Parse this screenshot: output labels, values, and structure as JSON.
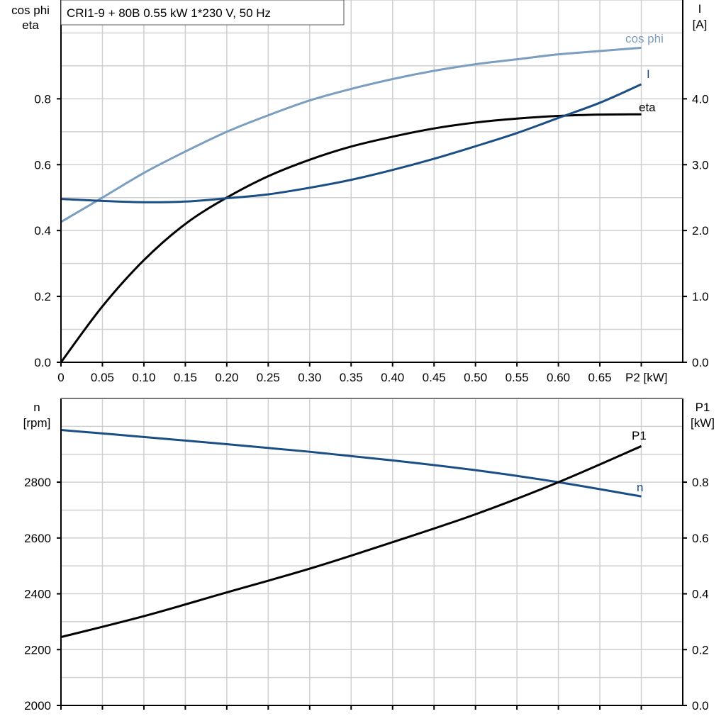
{
  "title": "CRI1-9 + 80B   0.55 kW   1*230 V, 50 Hz",
  "colors": {
    "cos_phi": "#7b9dbf",
    "I": "#1a4e85",
    "eta": "#000000",
    "n": "#1a4e85",
    "P1": "#000000",
    "grid": "#d0d0d0"
  },
  "chart_data": [
    {
      "type": "line",
      "x_label": "P2 [kW]",
      "x_ticks": [
        "0",
        "0.05",
        "0.10",
        "0.15",
        "0.20",
        "0.25",
        "0.30",
        "0.35",
        "0.40",
        "0.45",
        "0.50",
        "0.55",
        "0.60",
        "0.65"
      ],
      "xlim": [
        0,
        0.75
      ],
      "left_axis_label": [
        "cos phi",
        "eta"
      ],
      "left_ticks": [
        "0.0",
        "0.2",
        "0.4",
        "0.6",
        "0.8"
      ],
      "ylim_left": [
        0,
        1.1
      ],
      "right_axis_label": [
        "I",
        "[A]"
      ],
      "right_ticks": [
        "0.0",
        "1.0",
        "2.0",
        "3.0",
        "4.0"
      ],
      "ylim_right": [
        0,
        5.5
      ],
      "grid": true,
      "x": [
        0,
        0.05,
        0.1,
        0.15,
        0.2,
        0.25,
        0.3,
        0.35,
        0.4,
        0.45,
        0.5,
        0.55,
        0.6,
        0.65,
        0.7
      ],
      "series": [
        {
          "name": "cos phi",
          "axis": "left",
          "values": [
            0.426,
            0.5,
            0.575,
            0.64,
            0.7,
            0.75,
            0.795,
            0.83,
            0.86,
            0.885,
            0.905,
            0.92,
            0.935,
            0.945,
            0.955
          ]
        },
        {
          "name": "eta",
          "axis": "left",
          "values": [
            0,
            0.17,
            0.31,
            0.42,
            0.5,
            0.565,
            0.615,
            0.655,
            0.685,
            0.71,
            0.728,
            0.74,
            0.748,
            0.752,
            0.753
          ]
        },
        {
          "name": "I",
          "axis": "right",
          "values": [
            2.48,
            2.45,
            2.43,
            2.44,
            2.49,
            2.55,
            2.65,
            2.77,
            2.92,
            3.09,
            3.28,
            3.48,
            3.71,
            3.94,
            4.22
          ]
        }
      ]
    },
    {
      "type": "line",
      "xlim": [
        0,
        0.75
      ],
      "left_axis_label": [
        "n",
        "[rpm]"
      ],
      "left_ticks": [
        "2000",
        "2200",
        "2400",
        "2600",
        "2800"
      ],
      "ylim_left": [
        2000,
        3100
      ],
      "right_axis_label": [
        "P1",
        "[kW]"
      ],
      "right_ticks": [
        "0.0",
        "0.2",
        "0.4",
        "0.6",
        "0.8"
      ],
      "ylim_right": [
        0,
        1.1
      ],
      "grid": true,
      "x": [
        0,
        0.1,
        0.2,
        0.3,
        0.4,
        0.5,
        0.6,
        0.7
      ],
      "series": [
        {
          "name": "n",
          "axis": "left",
          "values": [
            2987,
            2962,
            2936,
            2909,
            2878,
            2843,
            2800,
            2749
          ]
        },
        {
          "name": "P1",
          "axis": "right",
          "values": [
            0.245,
            0.32,
            0.405,
            0.49,
            0.585,
            0.685,
            0.8,
            0.929
          ]
        }
      ]
    }
  ]
}
